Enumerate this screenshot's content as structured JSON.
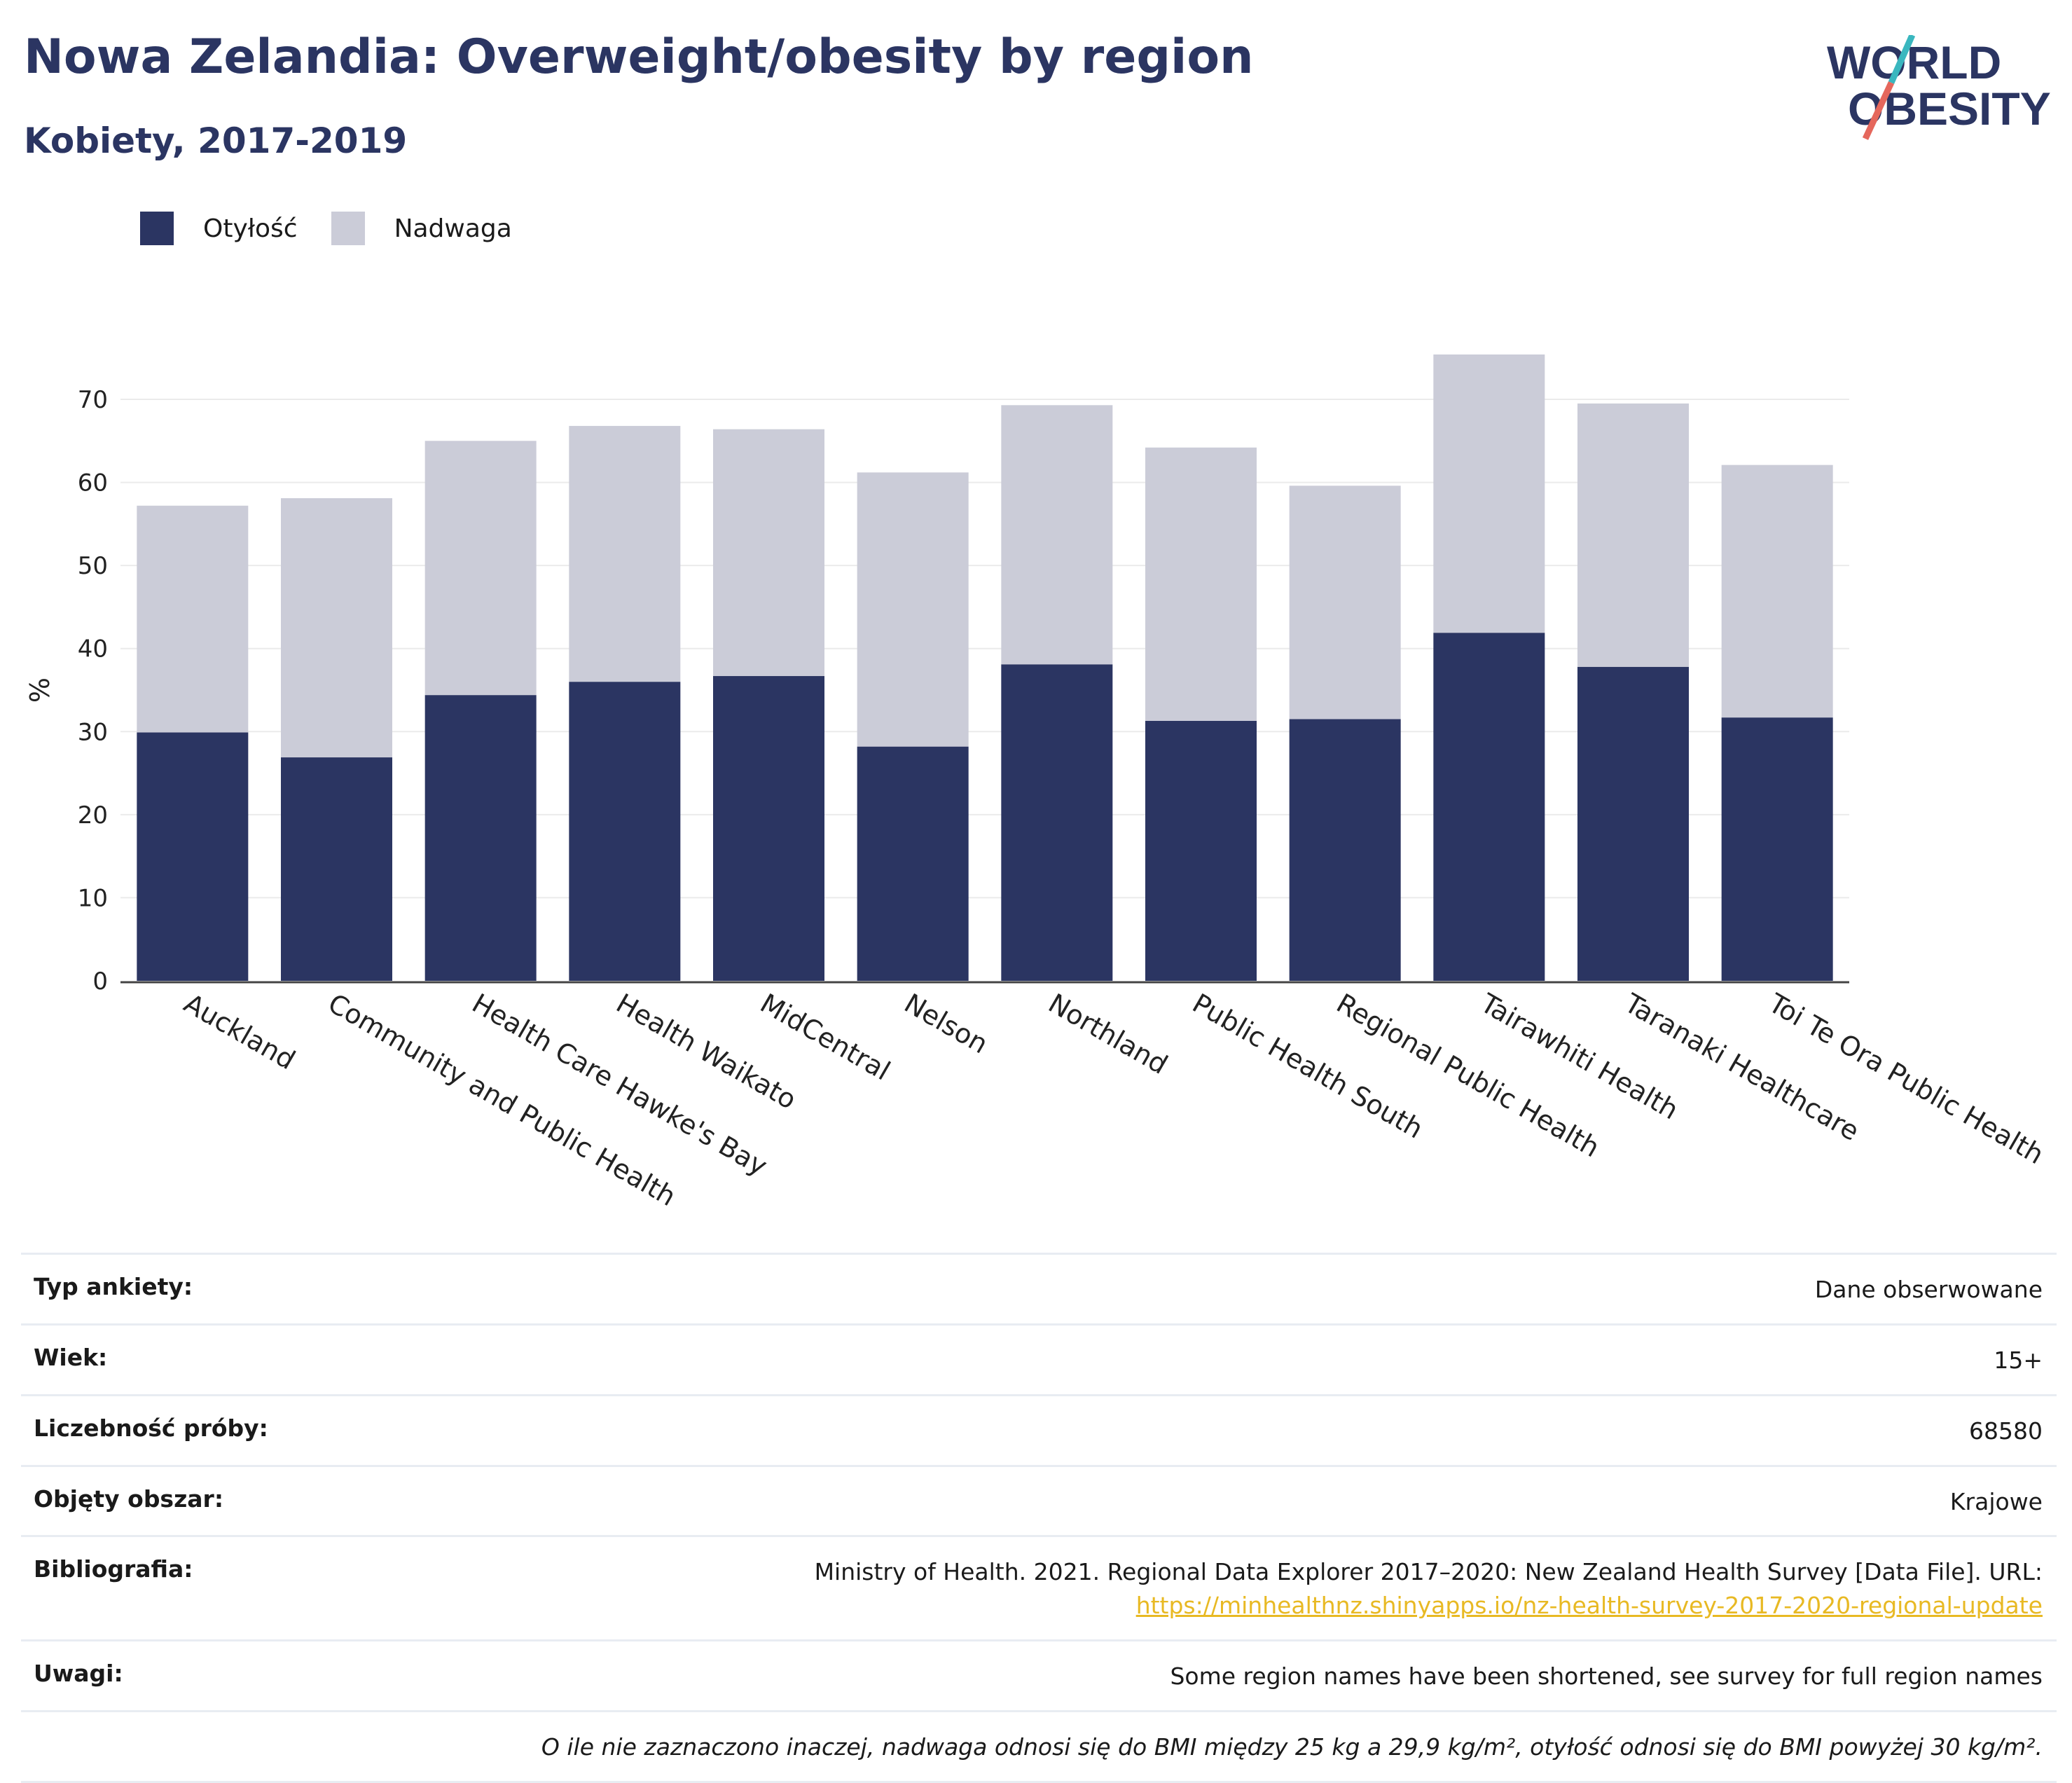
{
  "header": {
    "title": "Nowa Zelandia: Overweight/obesity by region",
    "subtitle": "Kobiety, 2017-2019"
  },
  "logo": {
    "line1": "WORLD",
    "line2": "OBESITY",
    "accent_colors": [
      "#3ab7bf",
      "#e5675c"
    ]
  },
  "legend": {
    "items": [
      {
        "label": "Otyłość",
        "color": "#2b3562"
      },
      {
        "label": "Nadwaga",
        "color": "#cbccd8"
      }
    ]
  },
  "chart_data": {
    "type": "bar",
    "stacked": true,
    "title": "",
    "xlabel": "",
    "ylabel": "%",
    "ylim": [
      0,
      75
    ],
    "yticks": [
      0,
      10,
      20,
      30,
      40,
      50,
      60,
      70
    ],
    "grid": true,
    "legend_position": "top-left",
    "categories": [
      "Auckland",
      "Community and Public Health",
      "Health Care Hawke's Bay",
      "Health Waikato",
      "MidCentral",
      "Nelson",
      "Northland",
      "Public Health South",
      "Regional Public Health",
      "Tairawhiti Health",
      "Taranaki Healthcare",
      "Toi Te Ora Public Health"
    ],
    "series": [
      {
        "name": "Otyłość",
        "color": "#2b3562",
        "values": [
          29.9,
          26.9,
          34.4,
          36.0,
          36.7,
          28.2,
          38.1,
          31.3,
          31.5,
          41.9,
          37.8,
          31.7
        ]
      },
      {
        "name": "Nadwaga",
        "color": "#cbccd8",
        "values": [
          27.3,
          31.2,
          30.6,
          30.8,
          29.7,
          33.0,
          31.2,
          32.9,
          28.1,
          33.5,
          31.7,
          30.4
        ]
      }
    ]
  },
  "details": {
    "rows": [
      {
        "label": "Typ ankiety:",
        "value": "Dane obserwowane"
      },
      {
        "label": "Wiek:",
        "value": "15+"
      },
      {
        "label": "Liczebność próby:",
        "value": "68580"
      },
      {
        "label": "Objęty obszar:",
        "value": "Krajowe"
      },
      {
        "label": "Bibliografia:",
        "value": "Ministry of Health. 2021. Regional Data Explorer 2017–2020: New Zealand Health Survey [Data File]. URL:",
        "link": "https://minhealthnz.shinyapps.io/nz-health-survey-2017-2020-regional-update"
      },
      {
        "label": "Uwagi:",
        "value": "Some region names have been shortened, see survey for full region names"
      }
    ],
    "note": "O ile nie zaznaczono inaczej, nadwaga odnosi się do BMI między 25 kg a 29,9 kg/m², otyłość odnosi się do BMI powyżej 30 kg/m²."
  }
}
